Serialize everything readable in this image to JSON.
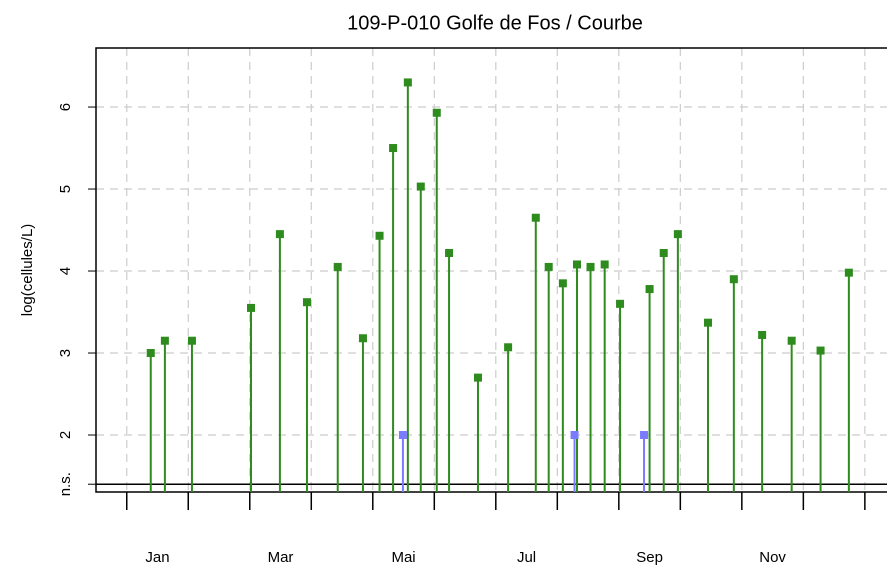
{
  "chart_data": {
    "type": "stem",
    "title": "109-P-010 Golfe de Fos / Courbe",
    "y_label": "log(cellules/L)",
    "xlim": [
      0.5,
      13.36
    ],
    "xticks": [
      1,
      2,
      3,
      4,
      5,
      6,
      7,
      8,
      9,
      10,
      11,
      12,
      13
    ],
    "xtick_labels": [
      {
        "value": 1.5,
        "label": "Jan"
      },
      {
        "value": 3.5,
        "label": "Mar"
      },
      {
        "value": 5.5,
        "label": "Mai"
      },
      {
        "value": 7.5,
        "label": "Jul"
      },
      {
        "value": 9.5,
        "label": "Sep"
      },
      {
        "value": 11.5,
        "label": "Nov"
      }
    ],
    "ylim": [
      1.305,
      6.72
    ],
    "yticks": [
      {
        "value": 1.4,
        "label": "n.s."
      },
      2,
      3,
      4,
      5,
      6
    ],
    "grid": true,
    "series": [
      {
        "color": "#2e8b1e",
        "x": [
          1.39,
          1.62,
          2.06,
          3.02,
          3.49,
          3.93,
          4.43,
          4.84,
          5.11,
          5.33,
          5.57,
          5.78,
          6.04,
          6.24,
          6.71,
          7.2,
          7.65,
          7.86,
          8.09,
          8.32,
          8.54,
          8.77,
          9.02,
          9.5,
          9.73,
          9.96,
          10.45,
          10.87,
          11.33,
          11.81,
          12.28,
          12.74
        ],
        "values": [
          3.0,
          3.15,
          3.15,
          3.55,
          4.45,
          3.62,
          4.05,
          3.18,
          4.43,
          5.5,
          6.3,
          5.03,
          5.93,
          4.22,
          2.7,
          3.07,
          4.65,
          4.05,
          3.85,
          4.08,
          4.05,
          4.08,
          3.6,
          3.78,
          4.22,
          4.45,
          3.37,
          3.9,
          3.22,
          3.15,
          3.03,
          3.98
        ]
      },
      {
        "color": "#7b7bff",
        "x": [
          5.49,
          8.28,
          9.41
        ],
        "values": [
          2,
          2,
          2
        ]
      }
    ]
  }
}
